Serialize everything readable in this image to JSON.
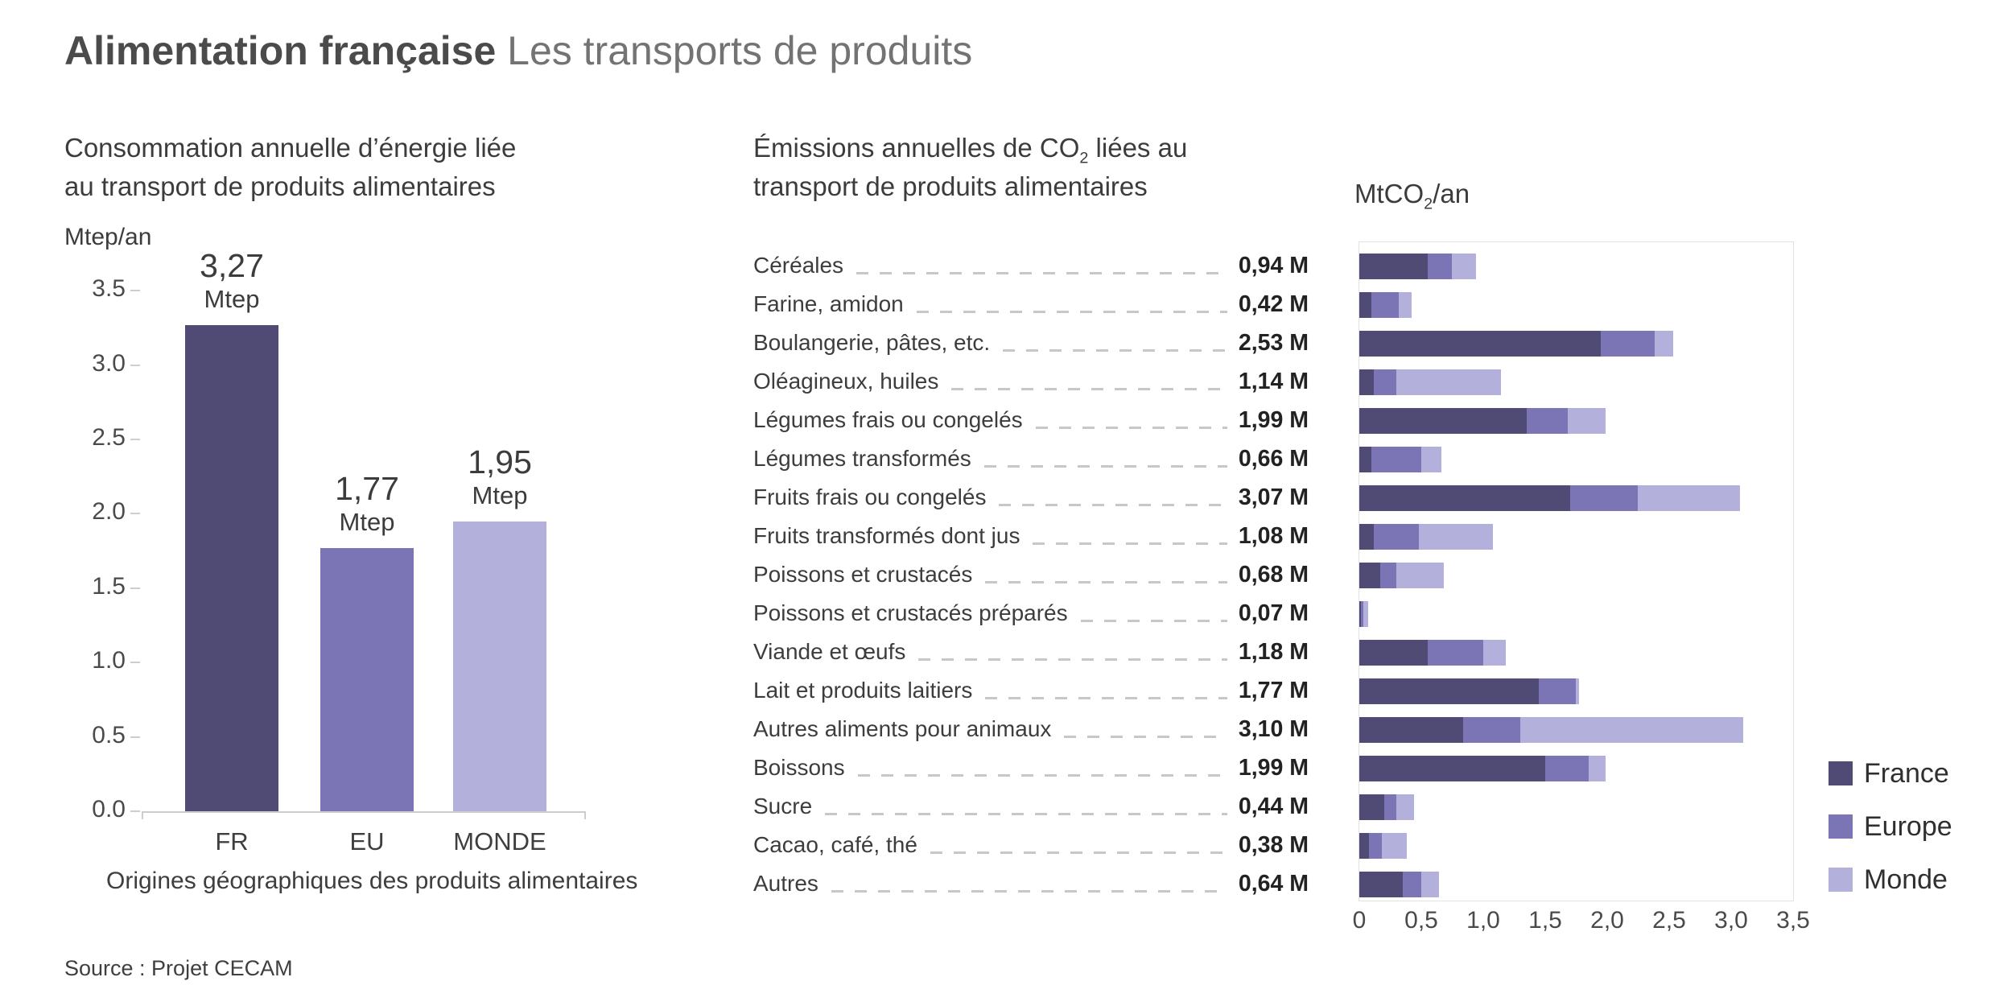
{
  "header": {
    "title_bold": "Alimentation française",
    "title_light": " Les transports de produits"
  },
  "source": "Source : Projet CECAM",
  "chart_data": [
    {
      "type": "bar",
      "title_line1": "Consommation annuelle d’énergie liée",
      "title_line2": "au transport de produits alimentaires",
      "ylabel": "Mtep/an",
      "xlabel": "Origines géographiques des produits alimentaires",
      "categories": [
        "FR",
        "EU",
        "MONDE"
      ],
      "values": [
        3.27,
        1.77,
        1.95
      ],
      "value_labels": [
        "3,27",
        "1,77",
        "1,95"
      ],
      "value_unit": "Mtep",
      "ylim": [
        0,
        3.5
      ],
      "y_tick_labels": [
        "3.5",
        "3.0",
        "2.5",
        "2.0",
        "1.5",
        "1.0",
        "0.5",
        "0.0"
      ],
      "bar_colors": [
        "#4f4b74",
        "#7b75b6",
        "#b4b0dc"
      ],
      "grid": false
    },
    {
      "type": "bar",
      "orientation": "horizontal",
      "stacked": true,
      "title_line1_pre_sub": "Émissions annuelles de CO",
      "title_sub": "2",
      "title_line1_post_sub": " liées au",
      "title_line2": "transport de produits alimentaires",
      "value_axis_header_pre_sub": "MtCO",
      "value_axis_header_sub": "2",
      "value_axis_header_post_sub": "/an",
      "xlim": [
        0,
        3.5
      ],
      "x_ticks": [
        0,
        0.5,
        1,
        1.5,
        2,
        2.5,
        3,
        3.5
      ],
      "x_tick_labels": [
        "0",
        "0,5",
        "1,0",
        "1,5",
        "2,0",
        "2,5",
        "3,0",
        "3,5"
      ],
      "grid": false,
      "legend_position": "right",
      "categories": [
        "Céréales",
        "Farine, amidon",
        "Boulangerie, pâtes, etc.",
        "Oléagineux, huiles",
        "Légumes frais ou congelés",
        "Légumes transformés",
        "Fruits frais ou congelés",
        "Fruits transformés dont jus",
        "Poissons et crustacés",
        "Poissons et crustacés préparés",
        "Viande et œufs",
        "Lait et produits laitiers",
        "Autres aliments pour animaux",
        "Boissons",
        "Sucre",
        "Cacao, café, thé",
        "Autres"
      ],
      "totals": [
        0.94,
        0.42,
        2.53,
        1.14,
        1.99,
        0.66,
        3.07,
        1.08,
        0.68,
        0.07,
        1.18,
        1.77,
        3.1,
        1.99,
        0.44,
        0.38,
        0.64
      ],
      "totals_labels": [
        "0,94 M",
        "0,42 M",
        "2,53 M",
        "1,14 M",
        "1,99 M",
        "0,66 M",
        "3,07 M",
        "1,08 M",
        "0,68 M",
        "0,07 M",
        "1,18 M",
        "1,77 M",
        "3,10 M",
        "1,99 M",
        "0,44 M",
        "0,38 M",
        "0,64 M"
      ],
      "series": [
        {
          "name": "France",
          "color": "#4f4b74",
          "values": [
            0.55,
            0.1,
            1.95,
            0.12,
            1.35,
            0.1,
            1.7,
            0.12,
            0.17,
            0.01,
            0.55,
            1.45,
            0.84,
            1.5,
            0.2,
            0.08,
            0.35
          ]
        },
        {
          "name": "Europe",
          "color": "#7b75b6",
          "values": [
            0.2,
            0.22,
            0.43,
            0.18,
            0.33,
            0.4,
            0.55,
            0.36,
            0.13,
            0.02,
            0.45,
            0.3,
            0.46,
            0.35,
            0.1,
            0.1,
            0.15
          ]
        },
        {
          "name": "Monde",
          "color": "#b4b0dc",
          "values": [
            0.19,
            0.1,
            0.15,
            0.84,
            0.31,
            0.16,
            0.82,
            0.6,
            0.38,
            0.04,
            0.18,
            0.02,
            1.8,
            0.14,
            0.14,
            0.2,
            0.14
          ]
        }
      ]
    }
  ]
}
